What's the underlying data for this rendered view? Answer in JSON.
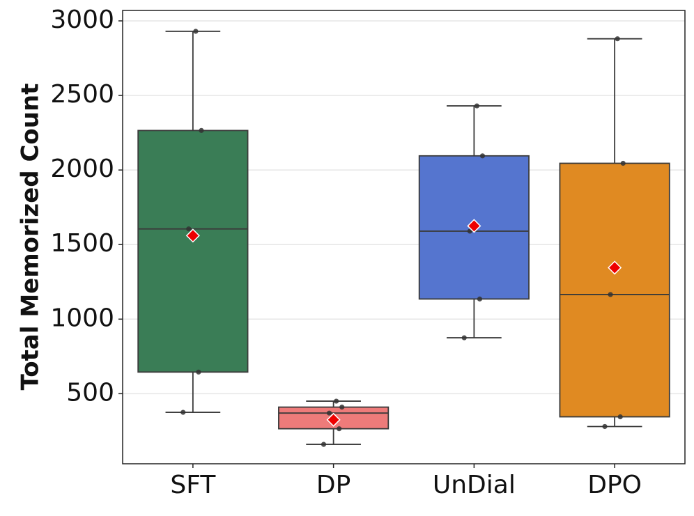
{
  "chart_data": {
    "type": "box",
    "title": "",
    "xlabel": "",
    "ylabel": "Total Memorized Count",
    "ylim": [
      30,
      3070
    ],
    "yticks": [
      500,
      1000,
      1500,
      2000,
      2500,
      3000
    ],
    "grid": "horizontal",
    "categories": [
      "SFT",
      "DP",
      "UnDial",
      "DPO"
    ],
    "series": [
      {
        "name": "SFT",
        "color": "#3a7d56",
        "whisker_low": 375,
        "q1": 645,
        "median": 1605,
        "q3": 2265,
        "whisker_high": 2930,
        "mean": 1560,
        "points": [
          375,
          645,
          1605,
          2265,
          2930
        ]
      },
      {
        "name": "DP",
        "color": "#ee7b7a",
        "whisker_low": 160,
        "q1": 265,
        "median": 370,
        "q3": 410,
        "whisker_high": 450,
        "mean": 325,
        "points": [
          160,
          265,
          370,
          410,
          450
        ]
      },
      {
        "name": "UnDial",
        "color": "#5575cf",
        "whisker_low": 875,
        "q1": 1135,
        "median": 1590,
        "q3": 2095,
        "whisker_high": 2430,
        "mean": 1625,
        "points": [
          875,
          1135,
          1590,
          2095,
          2430
        ]
      },
      {
        "name": "DPO",
        "color": "#e08a22",
        "whisker_low": 280,
        "q1": 345,
        "median": 1165,
        "q3": 2045,
        "whisker_high": 2880,
        "mean": 1345,
        "points": [
          280,
          345,
          1165,
          2045,
          2880
        ]
      }
    ],
    "mean_marker_color": "#ee0000"
  }
}
